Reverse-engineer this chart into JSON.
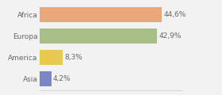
{
  "categories": [
    "Asia",
    "America",
    "Europa",
    "Africa"
  ],
  "values": [
    4.2,
    8.3,
    42.9,
    44.6
  ],
  "labels": [
    "4,2%",
    "8,3%",
    "42,9%",
    "44,6%"
  ],
  "bar_colors": [
    "#7b86c2",
    "#e8c84e",
    "#a8bf87",
    "#e8a87c"
  ],
  "xlim": [
    0,
    52
  ],
  "background_color": "#f2f2f2",
  "label_fontsize": 6.5,
  "tick_fontsize": 6.5,
  "bar_height": 0.72,
  "figsize": [
    2.8,
    1.2
  ],
  "dpi": 100
}
